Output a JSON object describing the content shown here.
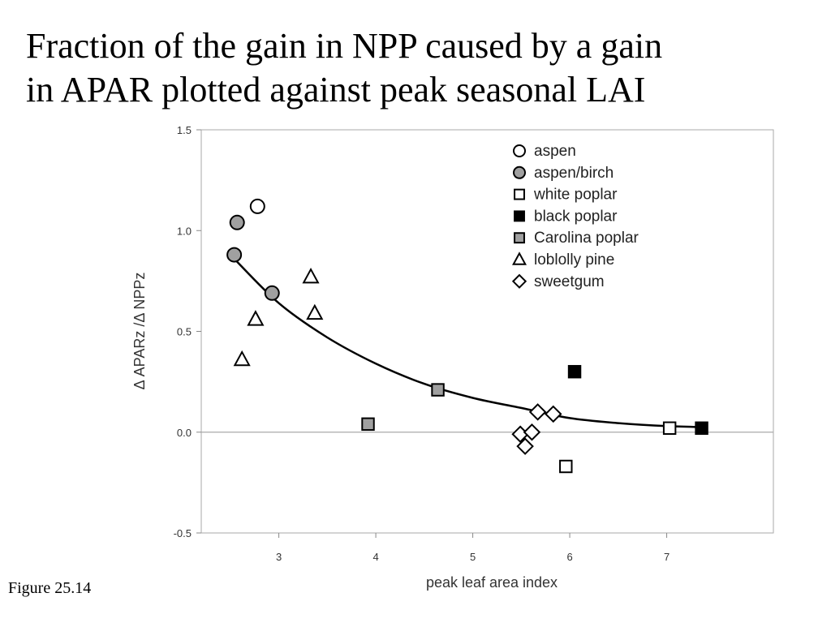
{
  "slide": {
    "title_line1": "Fraction of the gain in NPP caused by a gain",
    "title_line2": "in APAR plotted against peak seasonal LAI",
    "caption": "Figure 25.14"
  },
  "chart_data": {
    "type": "scatter",
    "xlabel": "peak leaf area index",
    "ylabel": "Δ APARz /Δ NPPz",
    "xlim": [
      2.2,
      8.1
    ],
    "ylim": [
      -0.5,
      1.5
    ],
    "x_ticks": [
      3,
      4,
      5,
      6,
      7
    ],
    "y_ticks": [
      -0.5,
      0.0,
      0.5,
      1.0,
      1.5
    ],
    "y_tick_labels": [
      "-0.5",
      "0.0",
      "0.5",
      "1.0",
      "1.5"
    ],
    "zero_line": true,
    "grid": false,
    "legend_position": "top-right",
    "series": [
      {
        "name": "aspen",
        "marker": "circle",
        "fill": "#ffffff",
        "points": [
          [
            2.78,
            1.12
          ]
        ]
      },
      {
        "name": "aspen/birch",
        "marker": "circle",
        "fill": "#a0a0a0",
        "points": [
          [
            2.57,
            1.04
          ],
          [
            2.54,
            0.88
          ],
          [
            2.93,
            0.69
          ]
        ]
      },
      {
        "name": "white poplar",
        "marker": "square",
        "fill": "#ffffff",
        "points": [
          [
            5.96,
            -0.17
          ],
          [
            7.03,
            0.02
          ]
        ]
      },
      {
        "name": "black poplar",
        "marker": "square",
        "fill": "#000000",
        "points": [
          [
            6.05,
            0.3
          ],
          [
            7.36,
            0.02
          ]
        ]
      },
      {
        "name": "Carolina poplar",
        "marker": "square",
        "fill": "#a0a0a0",
        "points": [
          [
            3.92,
            0.04
          ],
          [
            4.64,
            0.21
          ]
        ]
      },
      {
        "name": "loblolly pine",
        "marker": "triangle",
        "fill": "#ffffff",
        "points": [
          [
            2.62,
            0.36
          ],
          [
            2.76,
            0.56
          ],
          [
            3.33,
            0.77
          ],
          [
            3.37,
            0.59
          ]
        ]
      },
      {
        "name": "sweetgum",
        "marker": "diamond",
        "fill": "#ffffff",
        "points": [
          [
            5.49,
            -0.01
          ],
          [
            5.54,
            -0.07
          ],
          [
            5.61,
            0.0
          ],
          [
            5.67,
            0.1
          ],
          [
            5.83,
            0.09
          ]
        ]
      }
    ],
    "fit_curve": {
      "points": [
        [
          2.54,
          0.86
        ],
        [
          3.0,
          0.64
        ],
        [
          3.5,
          0.47
        ],
        [
          4.0,
          0.34
        ],
        [
          4.5,
          0.24
        ],
        [
          5.0,
          0.17
        ],
        [
          5.5,
          0.12
        ],
        [
          6.0,
          0.07
        ],
        [
          6.5,
          0.045
        ],
        [
          7.0,
          0.03
        ],
        [
          7.36,
          0.025
        ]
      ]
    }
  }
}
